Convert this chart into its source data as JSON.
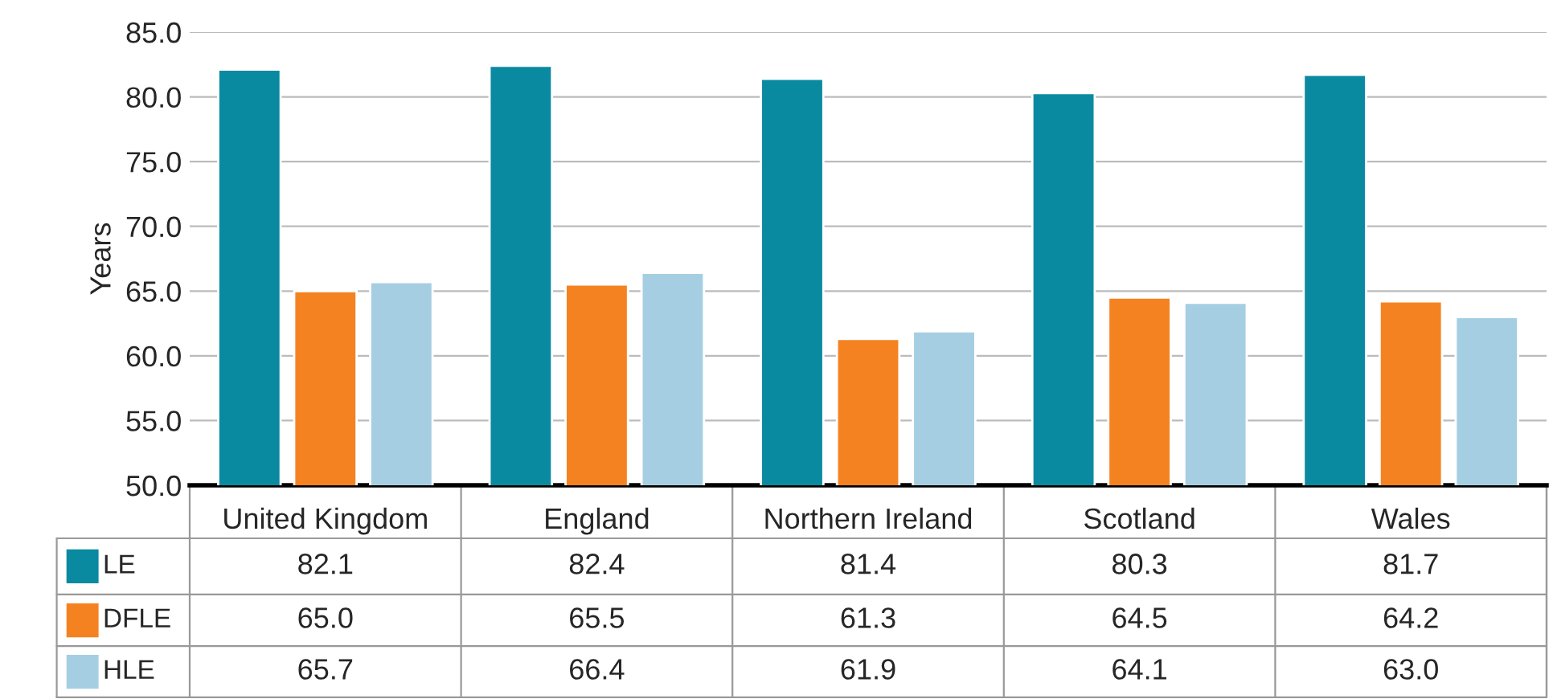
{
  "chart_data": {
    "type": "bar",
    "ylabel": "Years",
    "categories": [
      "United Kingdom",
      "England",
      "Northern Ireland",
      "Scotland",
      "Wales"
    ],
    "series": [
      {
        "name": "LE",
        "color": "#0a8aa0",
        "values": [
          82.1,
          82.4,
          81.4,
          80.3,
          81.7
        ],
        "value_labels": [
          "82.1",
          "82.4",
          "81.4",
          "80.3",
          "81.7"
        ]
      },
      {
        "name": "DFLE",
        "color": "#f58220",
        "values": [
          65.0,
          65.5,
          61.3,
          64.5,
          64.2
        ],
        "value_labels": [
          "65.0",
          "65.5",
          "61.3",
          "64.5",
          "64.2"
        ]
      },
      {
        "name": "HLE",
        "color": "#a6cee3",
        "values": [
          65.7,
          66.4,
          61.9,
          64.1,
          63.0
        ],
        "value_labels": [
          "65.7",
          "66.4",
          "61.9",
          "64.1",
          "63.0"
        ]
      }
    ],
    "ylim": [
      50,
      85
    ],
    "yticks": [
      {
        "value": 50,
        "label": "50.0"
      },
      {
        "value": 55,
        "label": "55.0"
      },
      {
        "value": 60,
        "label": "60.0"
      },
      {
        "value": 65,
        "label": "65.0"
      },
      {
        "value": 70,
        "label": "70.0"
      },
      {
        "value": 75,
        "label": "75.0"
      },
      {
        "value": 80,
        "label": "80.0"
      },
      {
        "value": 85,
        "label": "85.0"
      }
    ],
    "grid": "y",
    "legend": "bottom"
  }
}
